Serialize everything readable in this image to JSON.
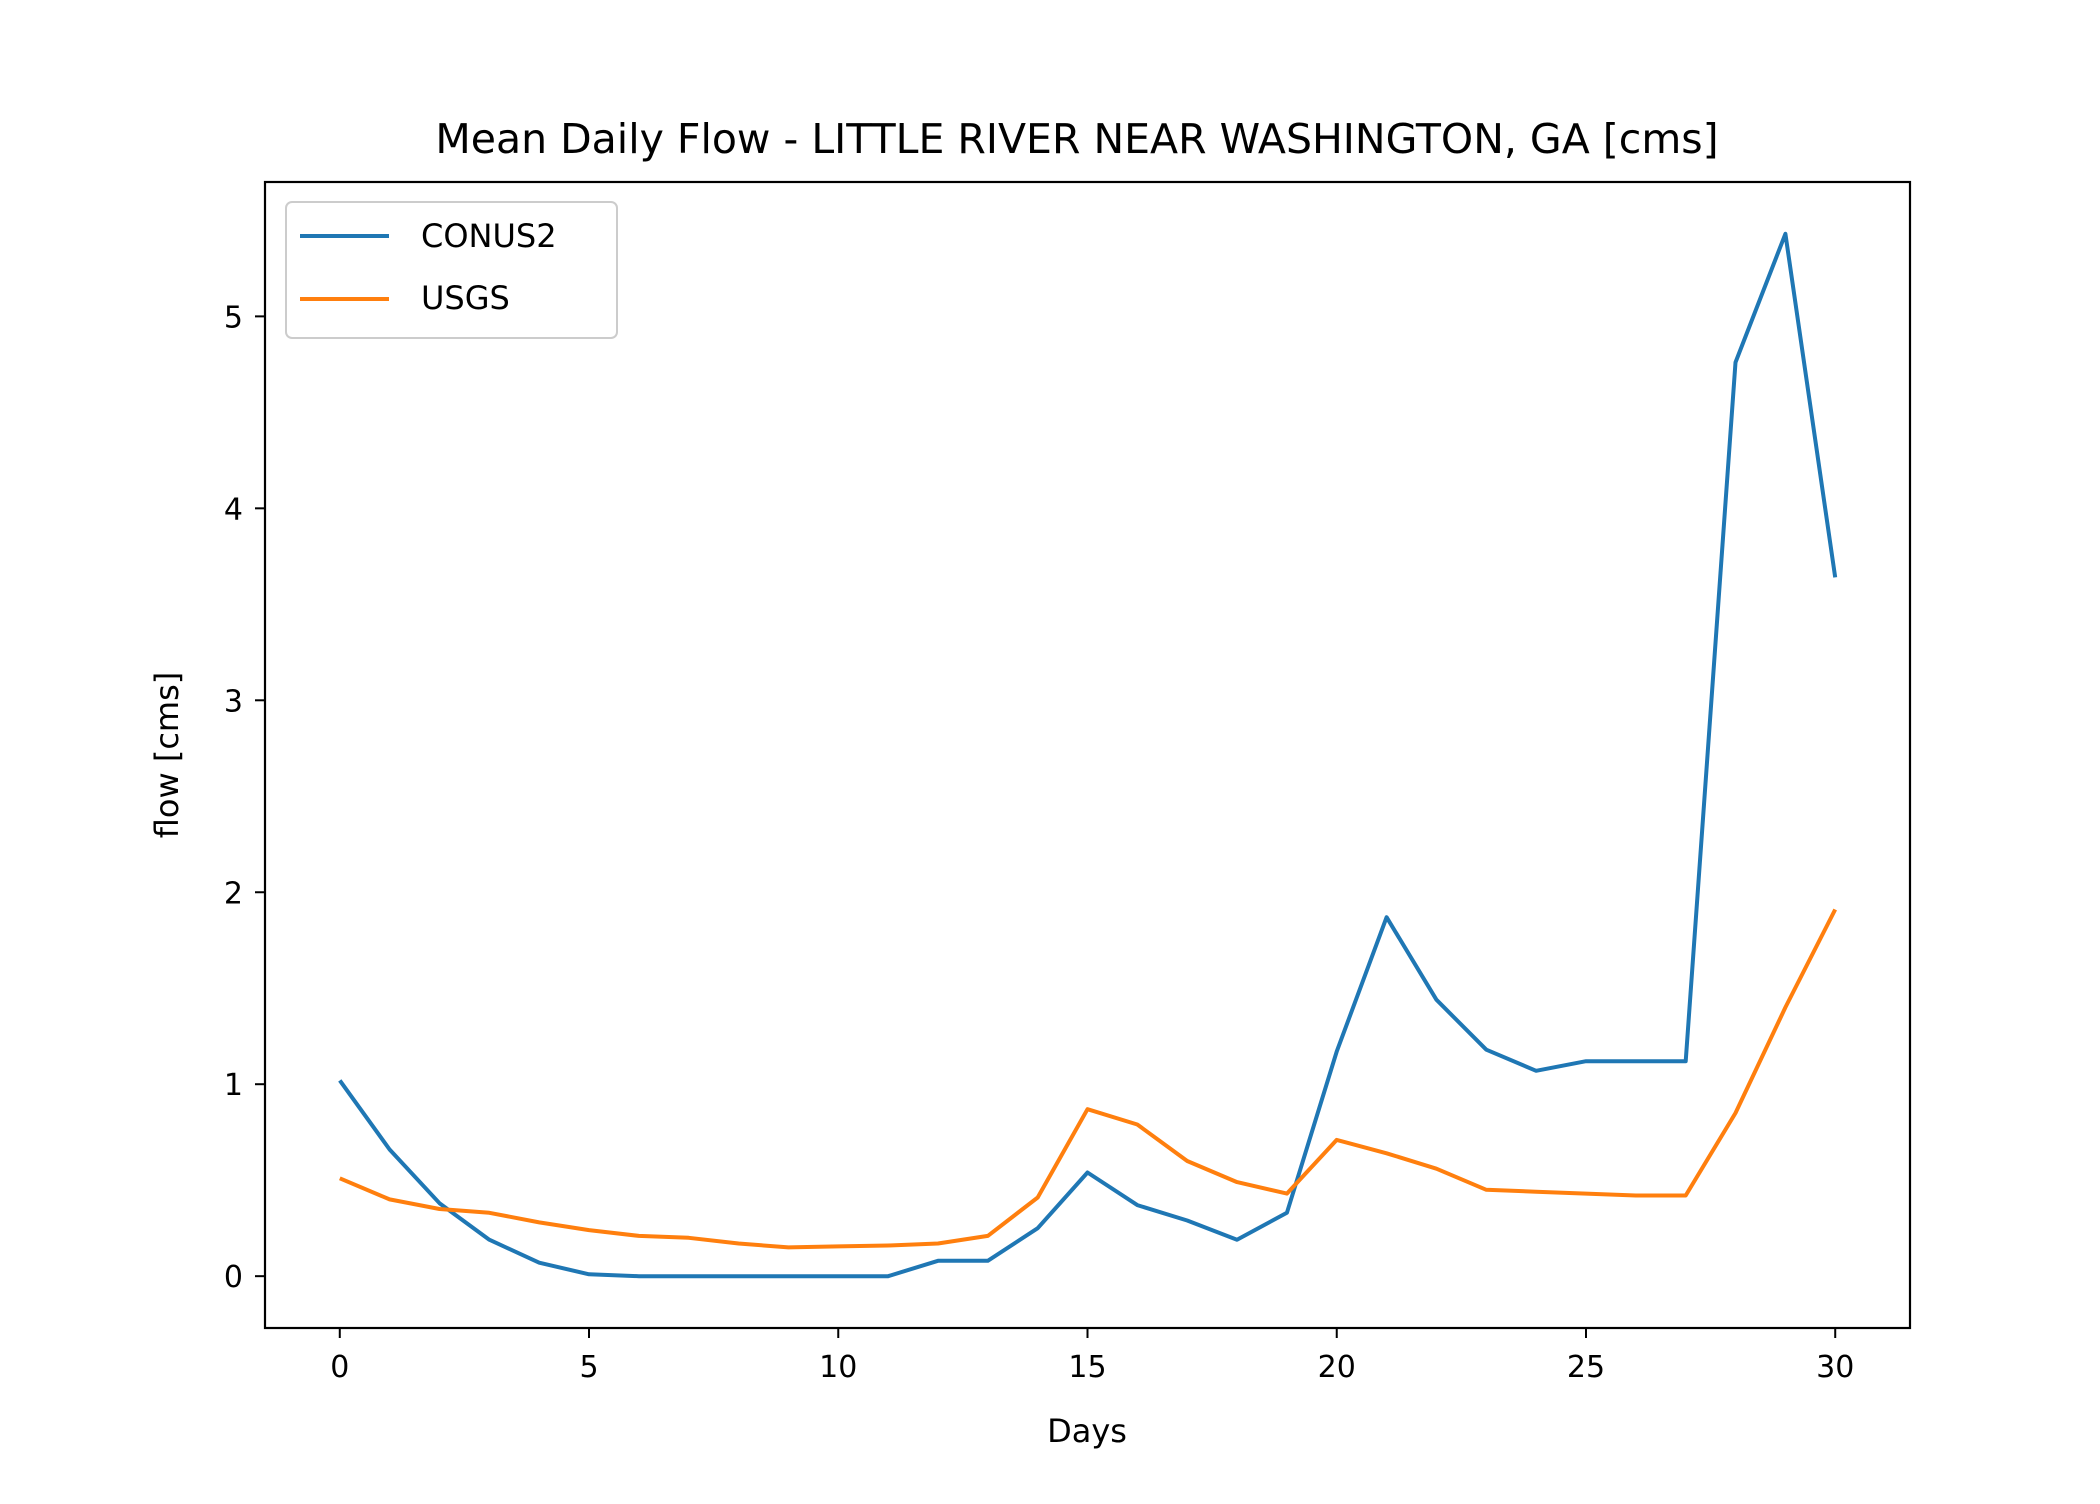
{
  "chart_data": {
    "type": "line",
    "title": "Mean Daily Flow - LITTLE RIVER NEAR WASHINGTON, GA [cms]",
    "xlabel": "Days",
    "ylabel": "flow [cms]",
    "xlim": [
      -1.5,
      31.5
    ],
    "ylim": [
      -0.27,
      5.7
    ],
    "xticks": [
      0,
      5,
      10,
      15,
      20,
      25,
      30
    ],
    "yticks": [
      0,
      1,
      2,
      3,
      4,
      5
    ],
    "grid": false,
    "legend_position": "top-left",
    "x": [
      0,
      1,
      2,
      3,
      4,
      5,
      6,
      7,
      8,
      9,
      10,
      11,
      12,
      13,
      14,
      15,
      16,
      17,
      18,
      19,
      20,
      21,
      22,
      23,
      24,
      25,
      26,
      27,
      28,
      29,
      30
    ],
    "series": [
      {
        "name": "CONUS2",
        "color": "#1f77b4",
        "values": [
          1.02,
          0.66,
          0.38,
          0.19,
          0.07,
          0.01,
          0.0,
          0.0,
          0.0,
          0.0,
          0.0,
          0.0,
          0.08,
          0.08,
          0.25,
          0.54,
          0.37,
          0.29,
          0.19,
          0.33,
          1.17,
          1.87,
          1.44,
          1.18,
          1.07,
          1.12,
          1.12,
          1.12,
          4.76,
          5.43,
          3.64
        ]
      },
      {
        "name": "USGS",
        "color": "#ff7f0e",
        "values": [
          0.51,
          0.4,
          0.35,
          0.33,
          0.28,
          0.24,
          0.21,
          0.2,
          0.17,
          0.15,
          0.155,
          0.16,
          0.17,
          0.21,
          0.41,
          0.87,
          0.79,
          0.6,
          0.49,
          0.43,
          0.71,
          0.64,
          0.56,
          0.45,
          0.44,
          0.43,
          0.42,
          0.42,
          0.85,
          1.4,
          1.91
        ]
      }
    ]
  }
}
